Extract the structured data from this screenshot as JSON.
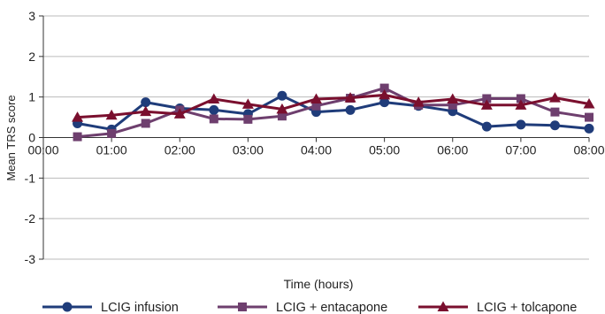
{
  "chart_data": {
    "type": "line",
    "title": "",
    "xlabel": "Time (hours)",
    "ylabel": "Mean TRS score",
    "ylim": [
      -3,
      3
    ],
    "yticks": [
      3,
      2,
      1,
      0,
      -1,
      -2,
      -3
    ],
    "xlim": [
      "00:00",
      "08:00"
    ],
    "xticks": [
      "00:00",
      "01:00",
      "02:00",
      "03:00",
      "04:00",
      "05:00",
      "06:00",
      "07:00",
      "08:00"
    ],
    "x": [
      "00:30",
      "01:00",
      "01:30",
      "02:00",
      "02:30",
      "03:00",
      "03:30",
      "04:00",
      "04:30",
      "05:00",
      "05:30",
      "06:00",
      "06:30",
      "07:00",
      "07:30",
      "08:00"
    ],
    "grid": "horizontal",
    "legend_position": "bottom",
    "series": [
      {
        "name": "LCIG infusion",
        "color": "#1f3c7a",
        "marker": "circle",
        "values": [
          0.35,
          0.2,
          0.87,
          0.72,
          0.68,
          0.58,
          1.03,
          0.63,
          0.68,
          0.87,
          0.78,
          0.65,
          0.27,
          0.32,
          0.3,
          0.22
        ]
      },
      {
        "name": "LCIG + entacapone",
        "color": "#6e3f6e",
        "marker": "square",
        "values": [
          0.02,
          0.1,
          0.35,
          0.68,
          0.46,
          0.45,
          0.53,
          0.78,
          0.97,
          1.22,
          0.8,
          0.8,
          0.96,
          0.96,
          0.63,
          0.5
        ]
      },
      {
        "name": "LCIG + tolcapone",
        "color": "#7a0f2e",
        "marker": "triangle",
        "values": [
          0.5,
          0.55,
          0.64,
          0.58,
          0.95,
          0.82,
          0.7,
          0.95,
          0.98,
          1.05,
          0.87,
          0.95,
          0.8,
          0.8,
          0.98,
          0.83
        ]
      }
    ]
  }
}
